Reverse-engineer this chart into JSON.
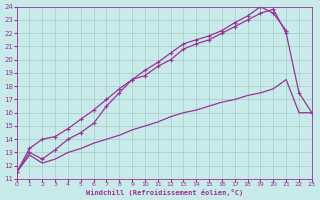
{
  "xlabel": "Windchill (Refroidissement éolien,°C)",
  "background_color": "#c8eae8",
  "grid_color": "#a0ccca",
  "line_color": "#993399",
  "xlim": [
    0,
    23
  ],
  "ylim": [
    11,
    24
  ],
  "xticks": [
    0,
    1,
    2,
    3,
    4,
    5,
    6,
    7,
    8,
    9,
    10,
    11,
    12,
    13,
    14,
    15,
    16,
    17,
    18,
    19,
    20,
    21,
    22,
    23
  ],
  "yticks": [
    11,
    12,
    13,
    14,
    15,
    16,
    17,
    18,
    19,
    20,
    21,
    22,
    23,
    24
  ],
  "line1_x": [
    0,
    1,
    2,
    3,
    4,
    5,
    6,
    7,
    8,
    9,
    10,
    11,
    12,
    13,
    14,
    15,
    16,
    17,
    18,
    19,
    20,
    21
  ],
  "line1_y": [
    11.5,
    13.3,
    14.0,
    14.2,
    14.8,
    15.5,
    16.2,
    17.0,
    17.8,
    18.5,
    19.2,
    19.8,
    20.5,
    21.2,
    21.5,
    21.8,
    22.2,
    22.8,
    23.3,
    24.0,
    23.5,
    22.2
  ],
  "line2_x": [
    0,
    1,
    2,
    3,
    4,
    5,
    6,
    7,
    8,
    9,
    10,
    11,
    12,
    13,
    14,
    15,
    16,
    17,
    18,
    19,
    20,
    21,
    22,
    23
  ],
  "line2_y": [
    11.5,
    13.0,
    12.5,
    13.2,
    14.0,
    14.5,
    15.2,
    16.5,
    17.5,
    18.5,
    18.8,
    19.5,
    20.0,
    20.8,
    21.2,
    21.5,
    22.0,
    22.5,
    23.0,
    23.5,
    23.8,
    22.0,
    17.5,
    16.0
  ],
  "line3_x": [
    0,
    1,
    2,
    3,
    4,
    5,
    6,
    7,
    8,
    9,
    10,
    11,
    12,
    13,
    14,
    15,
    16,
    17,
    18,
    19,
    20,
    21,
    22,
    23
  ],
  "line3_y": [
    11.5,
    12.8,
    12.2,
    12.5,
    13.0,
    13.3,
    13.7,
    14.0,
    14.3,
    14.7,
    15.0,
    15.3,
    15.7,
    16.0,
    16.2,
    16.5,
    16.8,
    17.0,
    17.3,
    17.5,
    17.8,
    18.5,
    16.0,
    16.0
  ]
}
